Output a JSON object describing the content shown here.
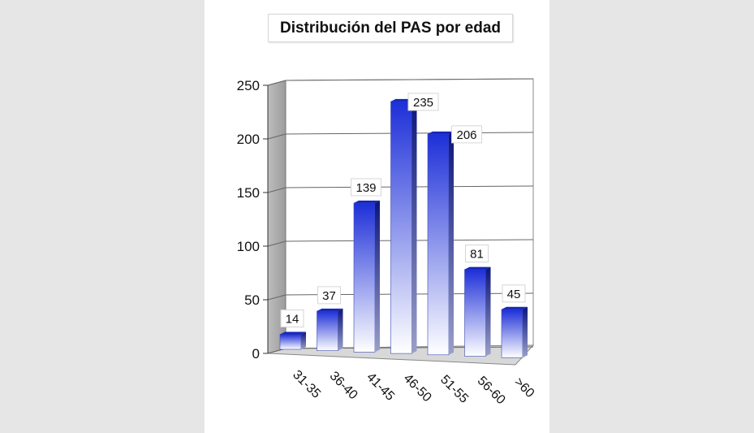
{
  "chart_data": {
    "type": "bar",
    "title": "Distribución del PAS por edad",
    "categories": [
      "31-35",
      "36-40",
      "41-45",
      "46-50",
      "51-55",
      "56-60",
      ">60"
    ],
    "values": [
      14,
      37,
      139,
      235,
      206,
      81,
      45
    ],
    "ylim": [
      0,
      250
    ],
    "yticks": [
      0,
      50,
      100,
      150,
      200,
      250
    ],
    "xlabel": "",
    "ylabel": "",
    "grid": true,
    "bar_color_top": "#1a2fd6",
    "bar_color_bottom": "#ffffff",
    "legend": "none"
  }
}
